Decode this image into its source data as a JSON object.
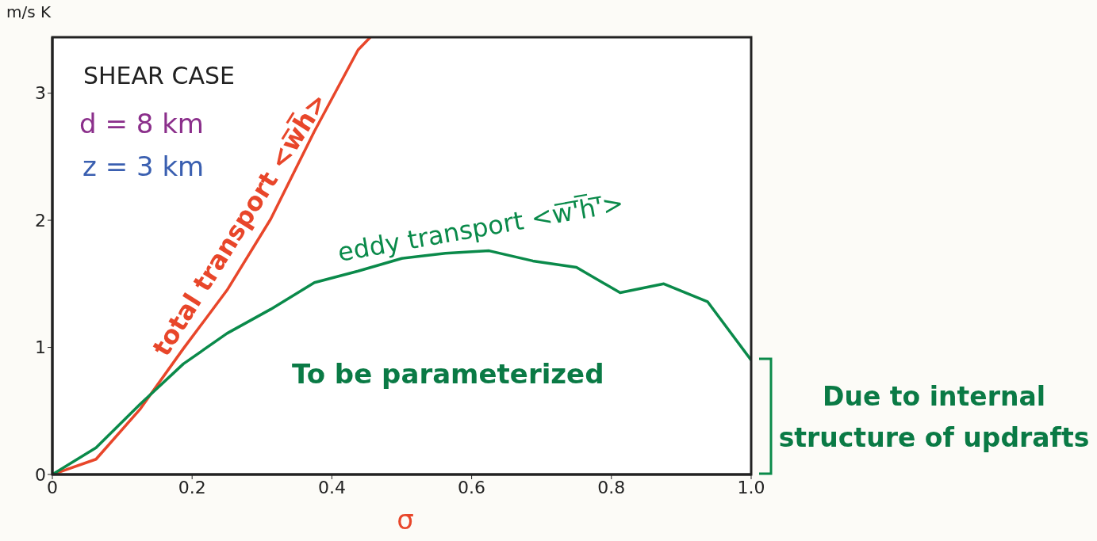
{
  "chart_data": {
    "type": "line",
    "xlabel": "σ",
    "ylabel": "m/s K",
    "x": [
      0,
      0.0625,
      0.125,
      0.1875,
      0.25,
      0.3125,
      0.375,
      0.4375,
      0.5,
      0.5625,
      0.625,
      0.6875,
      0.75,
      0.8125,
      0.875,
      0.9375,
      1.0
    ],
    "series": [
      {
        "name": "total transport <w̅h̅>",
        "color": "#e8462a",
        "x": [
          0,
          0.0625,
          0.125,
          0.1875,
          0.25,
          0.3125,
          0.375,
          0.4375,
          0.455
        ],
        "values": [
          0,
          0.12,
          0.51,
          0.99,
          1.45,
          2.01,
          2.7,
          3.34,
          3.44
        ]
      },
      {
        "name": "eddy transport <w̅'̅h̅'̅>",
        "color": "#0a8a4a",
        "values": [
          0,
          0.21,
          0.55,
          0.87,
          1.11,
          1.3,
          1.51,
          1.6,
          1.7,
          1.74,
          1.76,
          1.68,
          1.63,
          1.43,
          1.5,
          1.36,
          0.9
        ]
      }
    ],
    "xlim": [
      0,
      1
    ],
    "ylim": [
      0,
      3.44
    ],
    "xticks": [
      0,
      0.2,
      0.4,
      0.6,
      0.8,
      {
        "value": 1,
        "label": "1.0"
      }
    ],
    "yticks": [
      0,
      1,
      2,
      3
    ],
    "marker": "none",
    "line_style": "solid",
    "annotations": [
      "SHEAR CASE",
      "d = 8 km",
      "z = 3 km",
      "To be parameterized",
      "Due to internal structure of updrafts"
    ]
  }
}
